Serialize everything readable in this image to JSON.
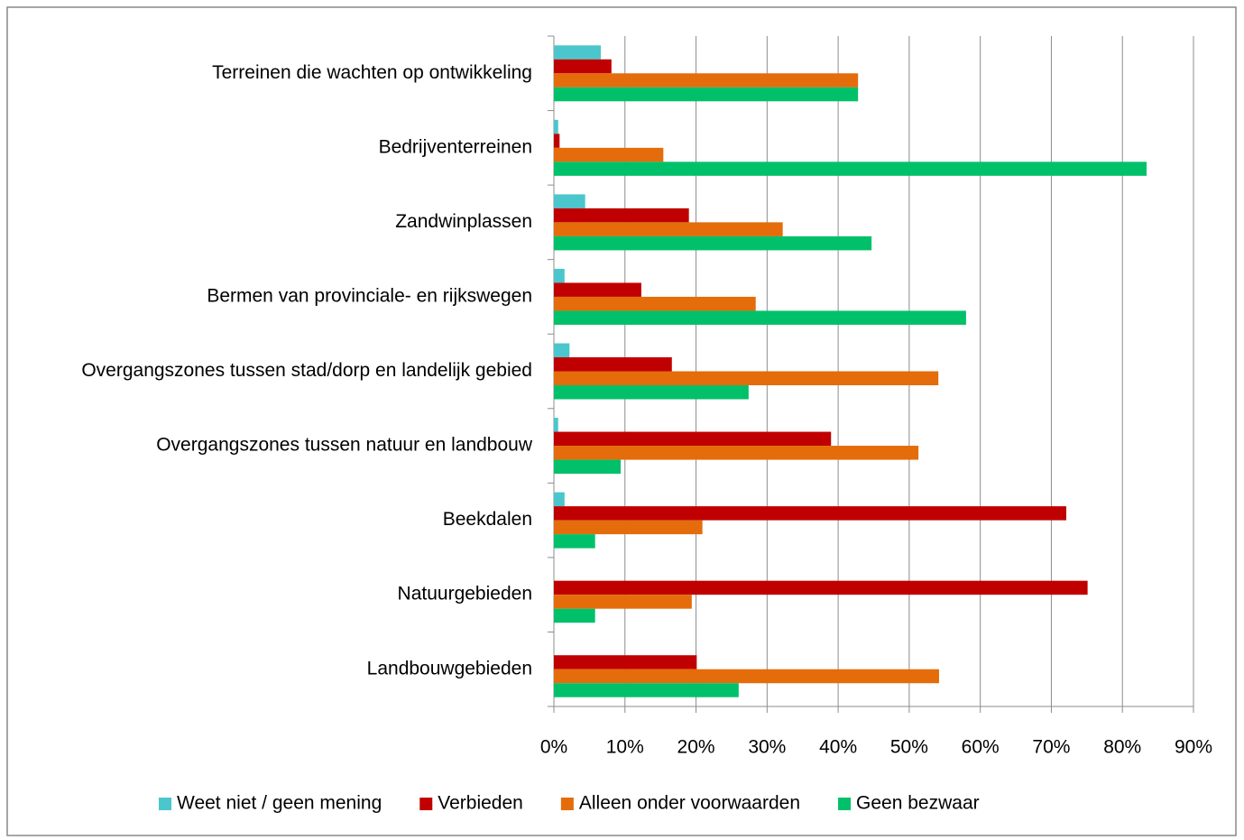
{
  "chart_data": {
    "type": "bar",
    "orientation": "horizontal",
    "categories": [
      "Terreinen die wachten op ontwikkeling",
      "Bedrijventerreinen",
      "Zandwinplassen",
      "Bermen van provinciale- en rijkswegen",
      "Overgangszones tussen stad/dorp en landelijk gebied",
      "Overgangszones tussen natuur en landbouw",
      "Beekdalen",
      "Natuurgebieden",
      "Landbouwgebieden"
    ],
    "series": [
      {
        "name": "Weet niet / geen mening",
        "color": "#4bc6cc",
        "values": [
          6.6,
          0.6,
          4.4,
          1.5,
          2.2,
          0.6,
          1.5,
          0,
          0
        ]
      },
      {
        "name": "Verbieden",
        "color": "#c00000",
        "values": [
          8.1,
          0.8,
          19.0,
          12.3,
          16.6,
          39.0,
          72.1,
          75.1,
          20.1
        ]
      },
      {
        "name": "Alleen onder voorwaarden",
        "color": "#e46c0a",
        "values": [
          42.8,
          15.4,
          32.2,
          28.4,
          54.1,
          51.3,
          20.9,
          19.4,
          54.2
        ]
      },
      {
        "name": "Geen bezwaar",
        "color": "#00c06a",
        "values": [
          42.8,
          83.4,
          44.7,
          58.0,
          27.4,
          9.4,
          5.8,
          5.8,
          26.0
        ]
      }
    ],
    "xlim": [
      0,
      90
    ],
    "xticks": [
      {
        "value": 0,
        "label": "0%"
      },
      {
        "value": 10,
        "label": "10%"
      },
      {
        "value": 20,
        "label": "20%"
      },
      {
        "value": 30,
        "label": "30%"
      },
      {
        "value": 40,
        "label": "40%"
      },
      {
        "value": 50,
        "label": "50%"
      },
      {
        "value": 60,
        "label": "60%"
      },
      {
        "value": 70,
        "label": "70%"
      },
      {
        "value": 80,
        "label": "80%"
      },
      {
        "value": 90,
        "label": "90%"
      }
    ],
    "grid": true,
    "legend": "bottom"
  }
}
